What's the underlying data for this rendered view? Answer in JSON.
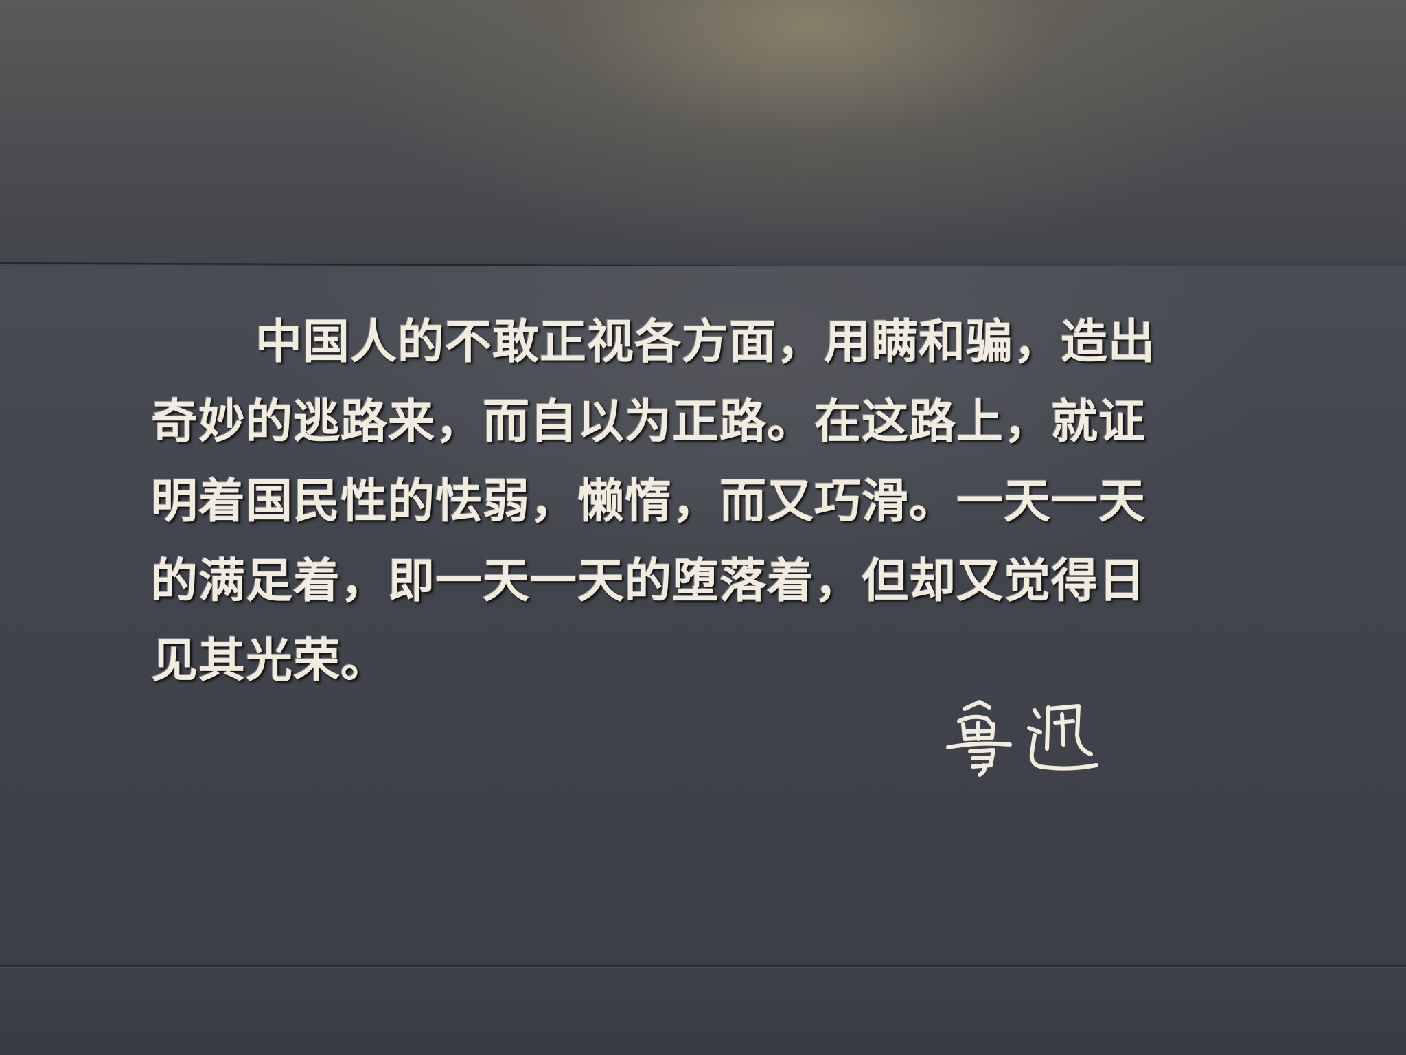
{
  "quote": {
    "lines": [
      "中国人的不敢正视各方面，用瞒和骗，造出",
      "奇妙的逃路来，而自以为正路。在这路上，就证",
      "明着国民性的怯弱，懒惰，而又巧滑。一天一天",
      "的满足着，即一天一天的堕落着，但却又觉得日",
      "见其光荣。"
    ]
  },
  "signature": {
    "text": "鲁迅"
  },
  "colors": {
    "wall": "#42444d",
    "engraving": "#f2ece0",
    "seam": "#1f2024"
  }
}
